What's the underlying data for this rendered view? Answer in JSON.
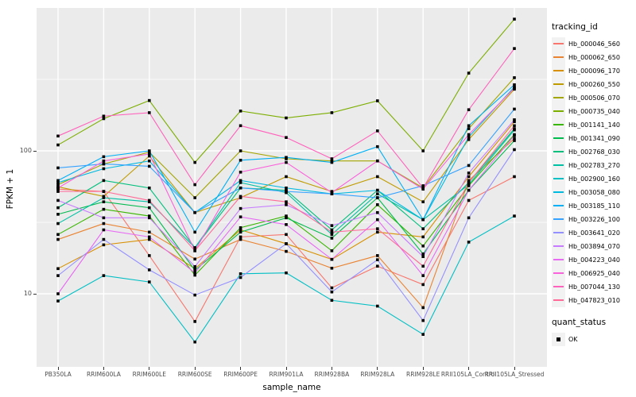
{
  "colors": {
    "panel_bg": "#EBEBEB",
    "grid": "#FFFFFF",
    "tick_text": "#4D4D4D",
    "marker": "#000000",
    "legend_key_bg": "#F2F2F2"
  },
  "chart_data": {
    "type": "line",
    "title": "",
    "xlabel": "sample_name",
    "ylabel": "FPKM + 1",
    "y_scale": "log10",
    "ylim": [
      3.1,
      1000
    ],
    "grid": true,
    "marker": "black-square",
    "y_ticks": [
      {
        "value": 100,
        "label": "100"
      },
      {
        "value": 10,
        "label": "10"
      }
    ],
    "y_minor_breaks": [
      31.62,
      316.2
    ],
    "x_categories": [
      "PB350LA",
      "RRIM600LA",
      "RRIM600LE",
      "RRIM600SE",
      "RRIM600PE",
      "RRIM901LA",
      "RRIM928BA",
      "RRIM928LA",
      "RRIM928LE",
      "RRII105LA_Control",
      "RRII105LA_Stressed"
    ],
    "legend": {
      "title": "tracking_id",
      "position": "right"
    },
    "quant_legend": {
      "title": "quant_status",
      "items": [
        {
          "label": "OK",
          "marker": "black-square"
        }
      ]
    },
    "series": [
      {
        "name": "Hb_000046_560",
        "color": "#F8766D",
        "values": [
          54,
          52,
          18.5,
          6.4,
          25,
          26,
          11,
          15.6,
          11.6,
          45,
          66
        ]
      },
      {
        "name": "Hb_000062_650",
        "color": "#EA8331",
        "values": [
          24,
          31,
          27,
          17.5,
          24,
          19.8,
          15.1,
          18.5,
          8,
          62,
          122
        ]
      },
      {
        "name": "Hb_000096_170",
        "color": "#D89000",
        "values": [
          15,
          22,
          24,
          15,
          28,
          22.4,
          17.4,
          27,
          25,
          66,
          160
        ]
      },
      {
        "name": "Hb_000260_550",
        "color": "#C09B00",
        "values": [
          56,
          48,
          92,
          37,
          47,
          66,
          52,
          66,
          44,
          120,
          270
        ]
      },
      {
        "name": "Hb_000506_070",
        "color": "#A3A500",
        "values": [
          58,
          81,
          98,
          47,
          100,
          88,
          85,
          85,
          55,
          143,
          325
        ]
      },
      {
        "name": "Hb_000735_040",
        "color": "#7CAE00",
        "values": [
          110,
          168,
          225,
          83,
          190,
          170,
          185,
          224,
          100,
          350,
          835
        ]
      },
      {
        "name": "Hb_001141_140",
        "color": "#39B600",
        "values": [
          26,
          39,
          35,
          13.5,
          29,
          35,
          20,
          42,
          21.6,
          57,
          130
        ]
      },
      {
        "name": "Hb_001341_090",
        "color": "#00BB4E",
        "values": [
          36,
          44,
          40,
          14.6,
          27,
          34,
          24.5,
          47,
          19,
          53,
          118
        ]
      },
      {
        "name": "Hb_002768_030",
        "color": "#00BF7D",
        "values": [
          40,
          62,
          55,
          21,
          55,
          53,
          28,
          53,
          28.5,
          60,
          143
        ]
      },
      {
        "name": "Hb_002783_270",
        "color": "#00C1A3",
        "values": [
          31,
          47,
          44,
          21,
          60,
          51,
          26,
          50,
          33,
          58,
          140
        ]
      },
      {
        "name": "Hb_002900_160",
        "color": "#00BFC4",
        "values": [
          8.9,
          13.4,
          12.1,
          4.6,
          13.8,
          14,
          9,
          8.2,
          5.2,
          23,
          35
        ]
      },
      {
        "name": "Hb_003058_080",
        "color": "#00BAE0",
        "values": [
          60,
          75,
          85,
          37,
          62,
          55,
          50,
          53,
          33,
          125,
          280
        ]
      },
      {
        "name": "Hb_003185_110",
        "color": "#00B0F6",
        "values": [
          62,
          91,
          100,
          27,
          86,
          90,
          83,
          107,
          33,
          150,
          290
        ]
      },
      {
        "name": "Hb_003226_100",
        "color": "#35A2FF",
        "values": [
          76,
          81,
          78,
          37,
          55,
          52,
          50,
          47,
          57,
          79,
          196
        ]
      },
      {
        "name": "Hb_003641_020",
        "color": "#9590FF",
        "values": [
          13.4,
          24,
          14.7,
          9.8,
          13,
          22.4,
          10.3,
          17.3,
          6.5,
          34,
          102
        ]
      },
      {
        "name": "Hb_003894_070",
        "color": "#C77CFF",
        "values": [
          45,
          34,
          34,
          15.5,
          39.5,
          42,
          30,
          37,
          18.2,
          70,
          165
        ]
      },
      {
        "name": "Hb_004223_040",
        "color": "#E76BF3",
        "values": [
          10,
          28,
          25,
          14,
          34.5,
          30.5,
          17.4,
          33,
          13.4,
          53,
          128
        ]
      },
      {
        "name": "Hb_006925_040",
        "color": "#FA62DB",
        "values": [
          55,
          85,
          95,
          20,
          71,
          83,
          51,
          85,
          54,
          130,
          275
        ]
      },
      {
        "name": "Hb_007044_130",
        "color": "#FF62BC",
        "values": [
          127,
          175,
          185,
          58,
          150,
          124,
          88,
          138,
          55,
          194,
          520
        ]
      },
      {
        "name": "Hb_047823_010",
        "color": "#FF6A98",
        "values": [
          52,
          52,
          45,
          20,
          48,
          44,
          27,
          28.5,
          15.6,
          60,
          150
        ]
      }
    ]
  }
}
